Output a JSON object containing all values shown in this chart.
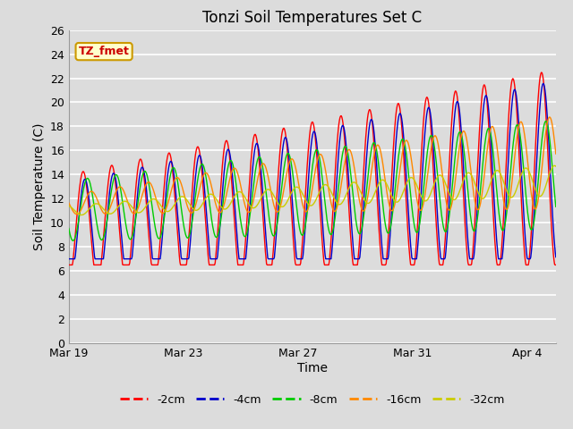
{
  "title": "Tonzi Soil Temperatures Set C",
  "xlabel": "Time",
  "ylabel": "Soil Temperature (C)",
  "ylim": [
    0,
    26
  ],
  "yticks": [
    0,
    2,
    4,
    6,
    8,
    10,
    12,
    14,
    16,
    18,
    20,
    22,
    24,
    26
  ],
  "xtick_labels": [
    "Mar 19",
    "Mar 23",
    "Mar 27",
    "Mar 31",
    "Apr 4"
  ],
  "xtick_positions": [
    0,
    4,
    8,
    12,
    16
  ],
  "bg_color": "#dcdcdc",
  "grid_color": "#ffffff",
  "annotation_text": "TZ_fmet",
  "annotation_box_color": "#ffffcc",
  "annotation_border_color": "#cc9900",
  "line_colors": {
    "-2cm": "#ff0000",
    "-4cm": "#0000cc",
    "-8cm": "#00cc00",
    "-16cm": "#ff8800",
    "-32cm": "#cccc00"
  },
  "title_fontsize": 12,
  "axis_label_fontsize": 10,
  "tick_fontsize": 9
}
